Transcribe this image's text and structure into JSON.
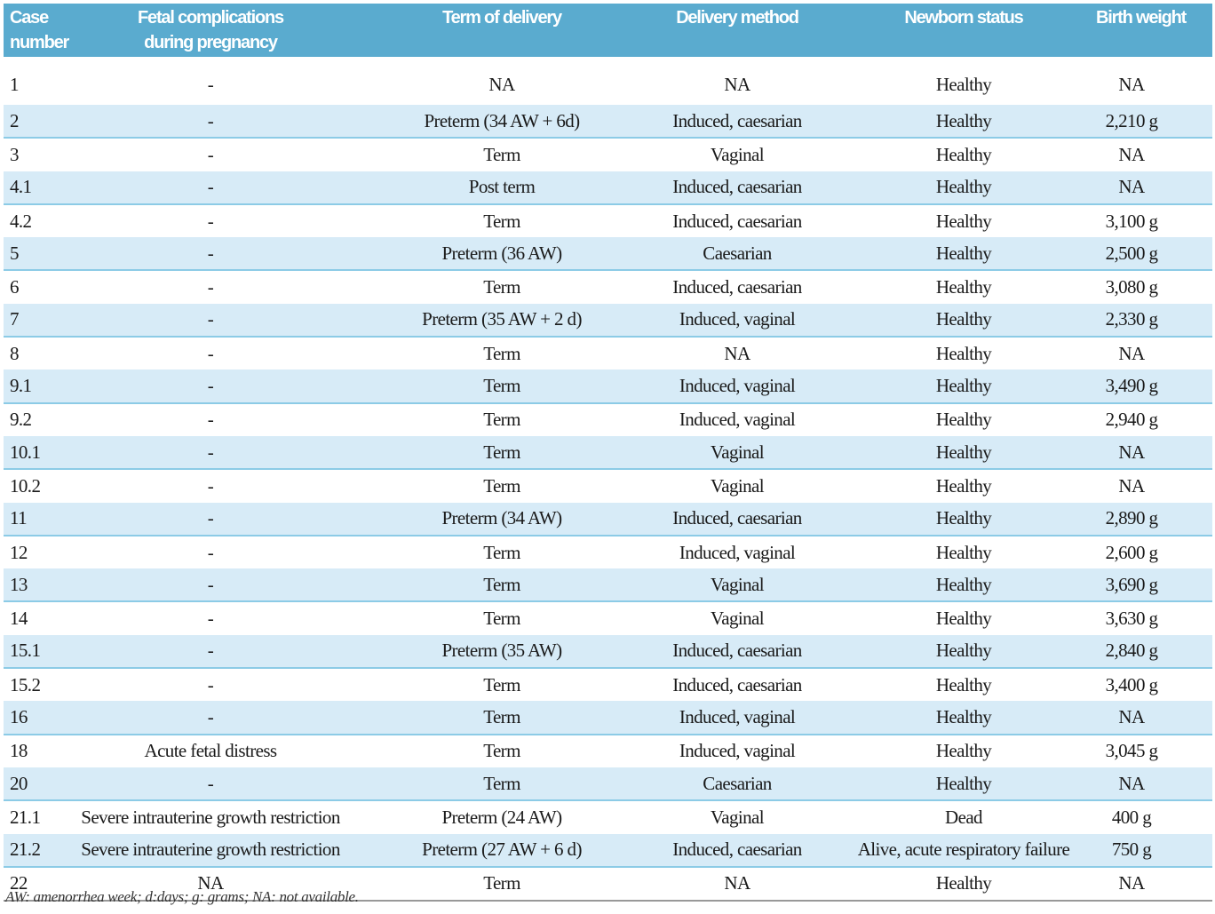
{
  "headers": [
    "Case number",
    "Fetal complications during pregnancy",
    "Term of delivery",
    "Delivery method",
    "Newborn status",
    "Birth weight"
  ],
  "header_lines": {
    "case": [
      "Case",
      "number"
    ],
    "fetal": [
      "Fetal complications",
      "during pregnancy"
    ]
  },
  "rows": [
    [
      "1",
      "-",
      "NA",
      "NA",
      "Healthy",
      "NA"
    ],
    [
      "2",
      "-",
      "Preterm (34 AW + 6d)",
      "Induced, caesarian",
      "Healthy",
      "2,210 g"
    ],
    [
      "3",
      "-",
      "Term",
      "Vaginal",
      "Healthy",
      "NA"
    ],
    [
      "4.1",
      "-",
      "Post term",
      "Induced, caesarian",
      "Healthy",
      "NA"
    ],
    [
      "4.2",
      "-",
      "Term",
      "Induced, caesarian",
      "Healthy",
      "3,100 g"
    ],
    [
      "5",
      "-",
      "Preterm (36 AW)",
      "Caesarian",
      "Healthy",
      "2,500 g"
    ],
    [
      "6",
      "-",
      "Term",
      "Induced, caesarian",
      "Healthy",
      "3,080 g"
    ],
    [
      "7",
      "-",
      "Preterm (35 AW + 2 d)",
      "Induced, vaginal",
      "Healthy",
      "2,330 g"
    ],
    [
      "8",
      "-",
      "Term",
      "NA",
      "Healthy",
      "NA"
    ],
    [
      "9.1",
      "-",
      "Term",
      "Induced, vaginal",
      "Healthy",
      "3,490 g"
    ],
    [
      "9.2",
      "-",
      "Term",
      "Induced, vaginal",
      "Healthy",
      "2,940 g"
    ],
    [
      "10.1",
      "-",
      "Term",
      "Vaginal",
      "Healthy",
      "NA"
    ],
    [
      "10.2",
      "-",
      "Term",
      "Vaginal",
      "Healthy",
      "NA"
    ],
    [
      "11",
      "-",
      "Preterm (34 AW)",
      "Induced, caesarian",
      "Healthy",
      "2,890 g"
    ],
    [
      "12",
      "-",
      "Term",
      "Induced, vaginal",
      "Healthy",
      "2,600 g"
    ],
    [
      "13",
      "-",
      "Term",
      "Vaginal",
      "Healthy",
      "3,690 g"
    ],
    [
      "14",
      "-",
      "Term",
      "Vaginal",
      "Healthy",
      "3,630 g"
    ],
    [
      "15.1",
      "-",
      "Preterm (35 AW)",
      "Induced, caesarian",
      "Healthy",
      "2,840 g"
    ],
    [
      "15.2",
      "-",
      "Term",
      "Induced, caesarian",
      "Healthy",
      "3,400 g"
    ],
    [
      "16",
      "-",
      "Term",
      "Induced, vaginal",
      "Healthy",
      "NA"
    ],
    [
      "18",
      "Acute fetal distress",
      "Term",
      "Induced, vaginal",
      "Healthy",
      "3,045 g"
    ],
    [
      "20",
      "-",
      "Term",
      "Caesarian",
      "Healthy",
      "NA"
    ],
    [
      "21.1",
      "Severe intrauterine growth restriction",
      "Preterm (24 AW)",
      "Vaginal",
      "Dead",
      "400 g"
    ],
    [
      "21.2",
      "Severe intrauterine growth restriction",
      "Preterm (27 AW + 6 d)",
      "Induced, caesarian",
      "Alive, acute respiratory failure",
      "750 g"
    ],
    [
      "22",
      "NA",
      "Term",
      "NA",
      "Healthy",
      "NA"
    ]
  ],
  "footnote": "AW: amenorrhea week; d:days; g: grams; NA: not available.",
  "colors": {
    "header_bg": "#5aabcf",
    "stripe_bg": "#d7ebf7",
    "stripe_border": "#8ccbe6"
  }
}
